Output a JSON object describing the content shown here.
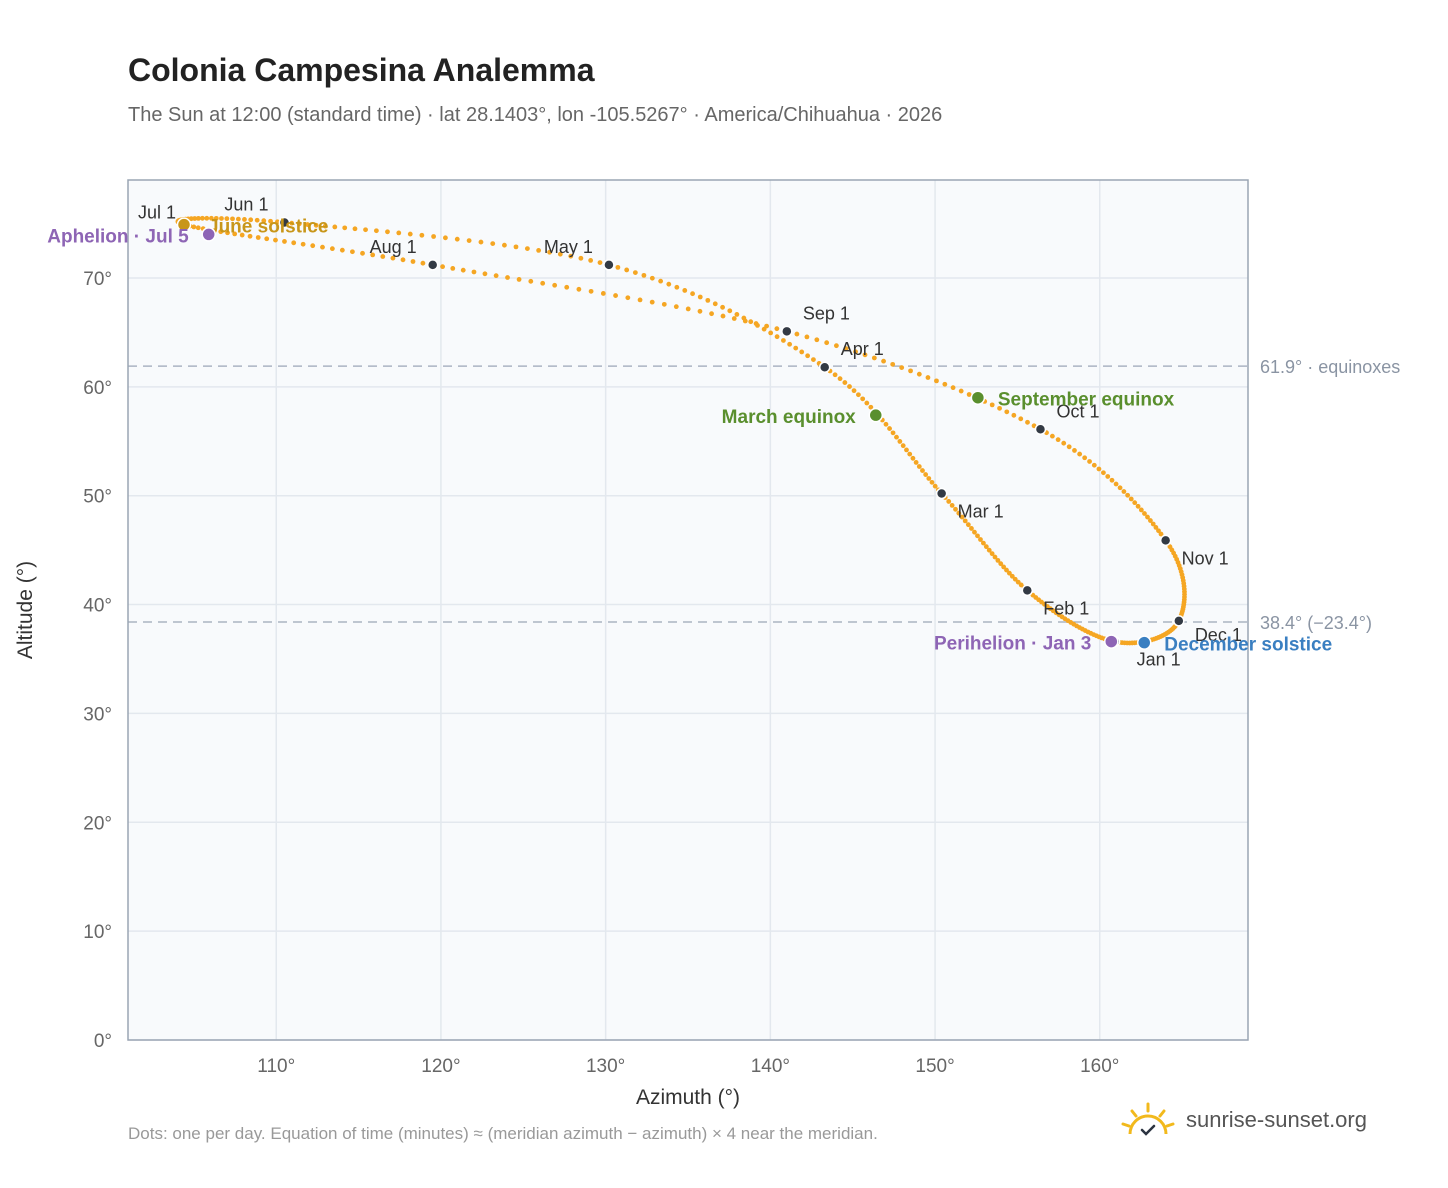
{
  "title": "Colonia Campesina Analemma",
  "subtitle": "The Sun at 12:00 (standard time) · lat 28.1403°, lon -105.5267° · America/Chihuahua · 2026",
  "footnote": "Dots: one per day. Equation of time (minutes) ≈ (meridian azimuth − azimuth) × 4 near the meridian.",
  "brand": "sunrise-sunset.org",
  "colors": {
    "curve": "#f5a623",
    "month_dot": "#333a44",
    "equinox": "#5a8f2e",
    "aphelion": "#8e65b5",
    "december_solstice": "#3a7fc1",
    "june_solstice": "#c8961a",
    "plot_bg": "#f8fafc",
    "grid": "#e3e8ee",
    "ref_line": "#aab4c2",
    "axis_text": "#666666"
  },
  "chart_data": {
    "type": "scatter",
    "xlabel": "Azimuth (°)",
    "ylabel": "Altitude (°)",
    "xlim": [
      101,
      169
    ],
    "ylim": [
      0,
      79
    ],
    "xticks": [
      110,
      120,
      130,
      140,
      150,
      160
    ],
    "xtick_labels": [
      "110°",
      "120°",
      "130°",
      "140°",
      "150°",
      "160°"
    ],
    "yticks": [
      0,
      10,
      20,
      30,
      40,
      50,
      60,
      70
    ],
    "ytick_labels": [
      "0°",
      "10°",
      "20°",
      "30°",
      "40°",
      "50°",
      "60°",
      "70°"
    ],
    "grid": true,
    "months": [
      {
        "label": "Jan 1",
        "az": 160.9,
        "alt": 36.6
      },
      {
        "label": "Feb 1",
        "az": 155.6,
        "alt": 41.3
      },
      {
        "label": "Mar 1",
        "az": 150.4,
        "alt": 50.2
      },
      {
        "label": "Apr 1",
        "az": 143.3,
        "alt": 61.8
      },
      {
        "label": "May 1",
        "az": 130.2,
        "alt": 71.2
      },
      {
        "label": "Jun 1",
        "az": 110.5,
        "alt": 75.1
      },
      {
        "label": "Jul 1",
        "az": 104.4,
        "alt": 74.9
      },
      {
        "label": "Aug 1",
        "az": 119.5,
        "alt": 71.2
      },
      {
        "label": "Sep 1",
        "az": 141.0,
        "alt": 65.1
      },
      {
        "label": "Oct 1",
        "az": 156.4,
        "alt": 56.1
      },
      {
        "label": "Nov 1",
        "az": 164.0,
        "alt": 45.9
      },
      {
        "label": "Dec 1",
        "az": 164.8,
        "alt": 38.5
      }
    ],
    "events": [
      {
        "label": "March equinox",
        "az": 146.4,
        "alt": 57.4,
        "color": "#5a8f2e"
      },
      {
        "label": "September equinox",
        "az": 152.6,
        "alt": 59.0,
        "color": "#5a8f2e"
      },
      {
        "label": "June solstice",
        "az": 104.4,
        "alt": 74.9,
        "color": "#c8961a"
      },
      {
        "label": "December solstice",
        "az": 162.7,
        "alt": 36.5,
        "color": "#3a7fc1"
      },
      {
        "label": "Aphelion · Jul 5",
        "az": 105.9,
        "alt": 74.0,
        "color": "#8e65b5"
      },
      {
        "label": "Perihelion · Jan 3",
        "az": 160.7,
        "alt": 36.6,
        "color": "#8e65b5"
      }
    ],
    "reference_lines": [
      {
        "value": 61.9,
        "label": "61.9° · equinoxes"
      },
      {
        "value": 38.4,
        "label": "38.4° (−23.4°)"
      }
    ]
  }
}
